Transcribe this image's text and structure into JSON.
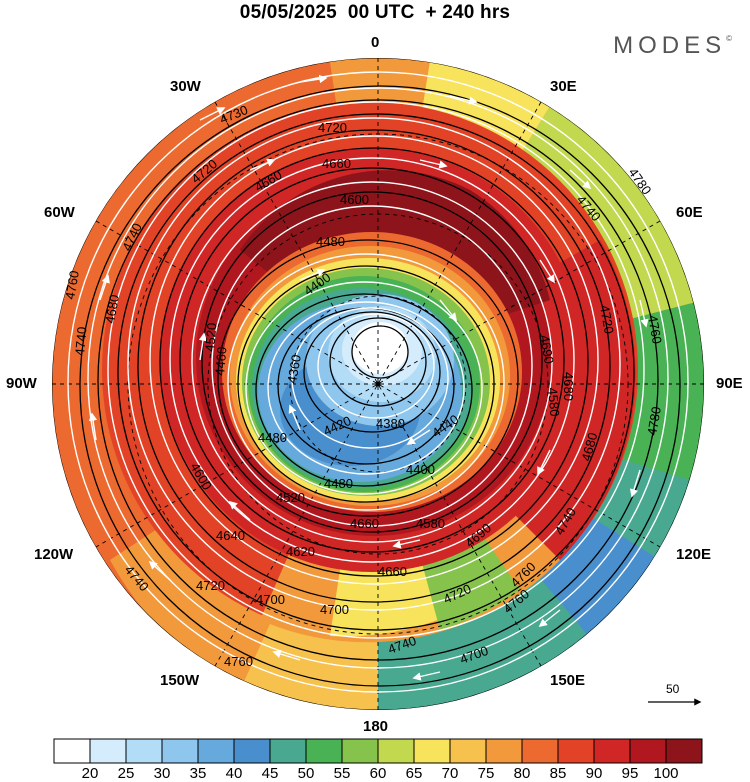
{
  "title": "05/05/2025  00 UTC  + 240 hrs",
  "brand": "MODES",
  "brand_mark": "©",
  "longitude_labels": {
    "n": "0",
    "e30": "30E",
    "e60": "60E",
    "e90": "90E",
    "e120": "120E",
    "e150": "150E",
    "s": "180",
    "w150": "150W",
    "w120": "120W",
    "w90": "90W",
    "w60": "60W",
    "w30": "30W"
  },
  "contour_labels": [
    "4730",
    "4720",
    "4660",
    "4600",
    "4580",
    "4480",
    "4400",
    "4360",
    "4380",
    "4420",
    "4440",
    "4460",
    "4520",
    "4640",
    "4620",
    "4660",
    "4700",
    "4740",
    "4760",
    "4780",
    "4690",
    "4680",
    "4720",
    "4740"
  ],
  "wind_reference": {
    "value": "50"
  },
  "colorbar": {
    "ticks": [
      "20",
      "25",
      "30",
      "35",
      "40",
      "45",
      "50",
      "55",
      "60",
      "65",
      "70",
      "75",
      "80",
      "85",
      "90",
      "95",
      "100"
    ],
    "colors": [
      "#ffffff",
      "#d4ecfb",
      "#b3dcf7",
      "#8fc6ee",
      "#66a9dc",
      "#4a8fcd",
      "#48a890",
      "#49b254",
      "#86c34c",
      "#c2d84e",
      "#f8e35c",
      "#f7c14e",
      "#f29a3b",
      "#ec6a2f",
      "#e24327",
      "#d02625",
      "#b0171f",
      "#8c141a"
    ]
  },
  "chart_data": {
    "type": "polar-map",
    "projection": "north-polar-stereographic",
    "variable_contours": "geopotential height (gpm)",
    "variable_shading": "wind speed",
    "colorbar_range": [
      20,
      100
    ],
    "colorbar_interval": 5
  }
}
